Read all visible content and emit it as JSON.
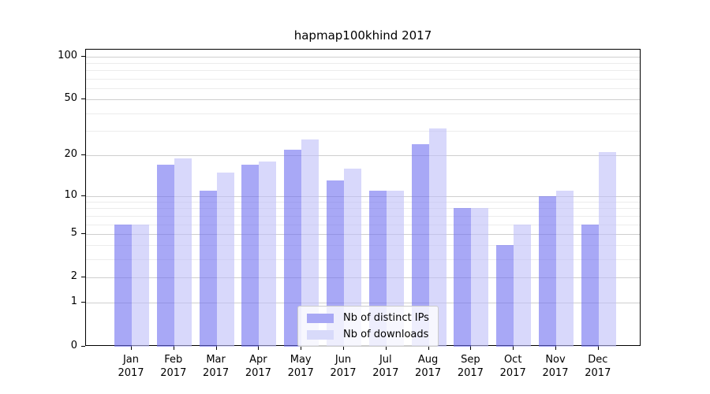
{
  "title": "hapmap100khind 2017",
  "chart_data": {
    "type": "bar",
    "title": "hapmap100khind 2017",
    "categories": [
      "Jan",
      "Feb",
      "Mar",
      "Apr",
      "May",
      "Jun",
      "Jul",
      "Aug",
      "Sep",
      "Oct",
      "Nov",
      "Dec"
    ],
    "year_label": "2017",
    "series": [
      {
        "name": "Nb of distinct IPs",
        "values": [
          6,
          17,
          11,
          17,
          22,
          13,
          11,
          24,
          8,
          4,
          10,
          6
        ],
        "fill": "rgba(110,110,240,0.6)",
        "legend_color": "#a8a8f5"
      },
      {
        "name": "Nb of downloads",
        "values": [
          6,
          19,
          15,
          18,
          26,
          16,
          11,
          31,
          8,
          6,
          11,
          21
        ],
        "fill": "rgba(190,190,248,0.6)",
        "legend_color": "#d8dafa"
      }
    ],
    "yscale": "log1p",
    "xlabel": "",
    "ylabel": "",
    "yticks": [
      100,
      50,
      20,
      10,
      5,
      2,
      1,
      0
    ],
    "minor_yticks": [
      3,
      4,
      6,
      7,
      8,
      9,
      30,
      40,
      60,
      70,
      80,
      90
    ],
    "ylim": [
      0,
      112
    ],
    "grid": true,
    "legend_position": "lower center"
  }
}
